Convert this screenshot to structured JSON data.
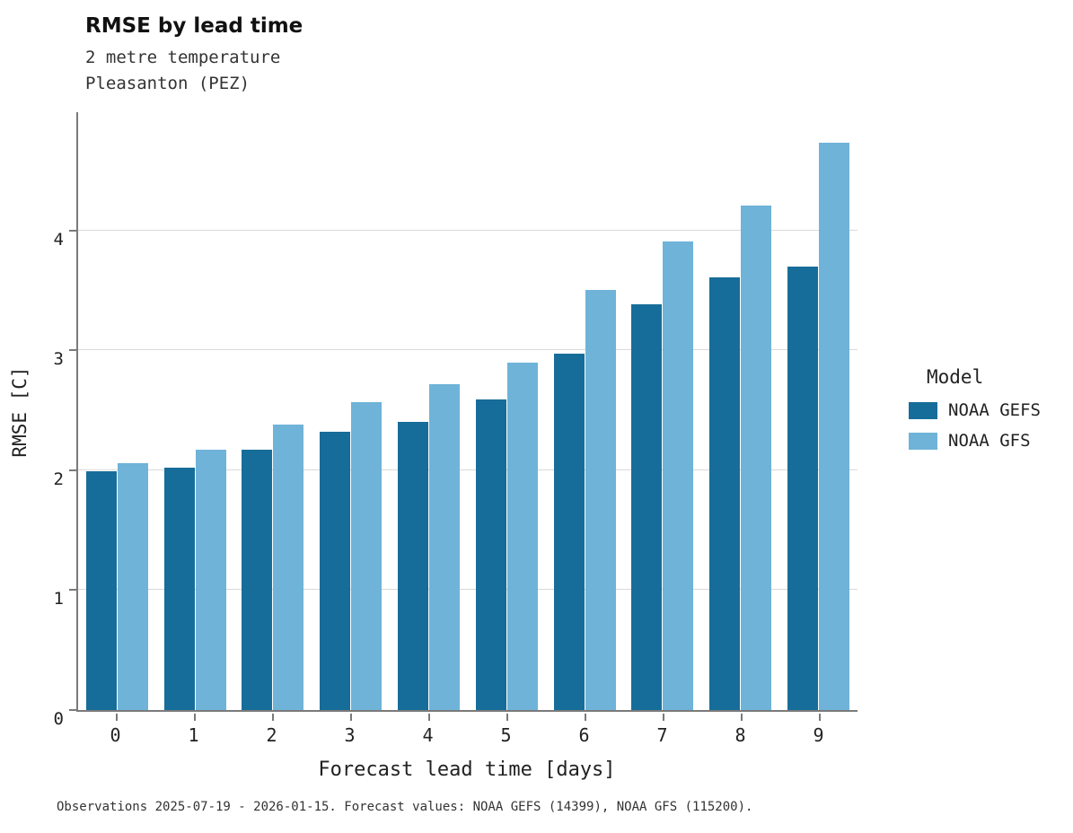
{
  "title": "RMSE by lead time",
  "subtitle_line1": "2 metre temperature",
  "subtitle_line2": "Pleasanton (PEZ)",
  "axes": {
    "xlabel": "Forecast lead time [days]",
    "ylabel": "RMSE [C]"
  },
  "legend": {
    "title": "Model",
    "entries": [
      {
        "label": "NOAA GEFS",
        "color": "#176d99"
      },
      {
        "label": "NOAA GFS",
        "color": "#6fb3d8"
      }
    ]
  },
  "caption": "Observations 2025-07-19 - 2026-01-15. Forecast values: NOAA GEFS (14399), NOAA GFS (115200).",
  "chart_data": {
    "type": "bar",
    "title": "RMSE by lead time",
    "subtitle": [
      "2 metre temperature",
      "Pleasanton (PEZ)"
    ],
    "xlabel": "Forecast lead time [days]",
    "ylabel": "RMSE [C]",
    "categories": [
      "0",
      "1",
      "2",
      "3",
      "4",
      "5",
      "6",
      "7",
      "8",
      "9"
    ],
    "series": [
      {
        "name": "NOAA GEFS",
        "color": "#176d99",
        "values": [
          1.99,
          2.02,
          2.17,
          2.32,
          2.4,
          2.59,
          2.97,
          3.38,
          3.61,
          3.7
        ]
      },
      {
        "name": "NOAA GFS",
        "color": "#6fb3d8",
        "values": [
          2.06,
          2.17,
          2.38,
          2.57,
          2.72,
          2.9,
          3.5,
          3.91,
          4.21,
          4.73
        ]
      }
    ],
    "ylim": [
      0,
      5
    ],
    "y_ticks": [
      0,
      1,
      2,
      3,
      4
    ],
    "grid": "horizontal",
    "legend_position": "right"
  }
}
